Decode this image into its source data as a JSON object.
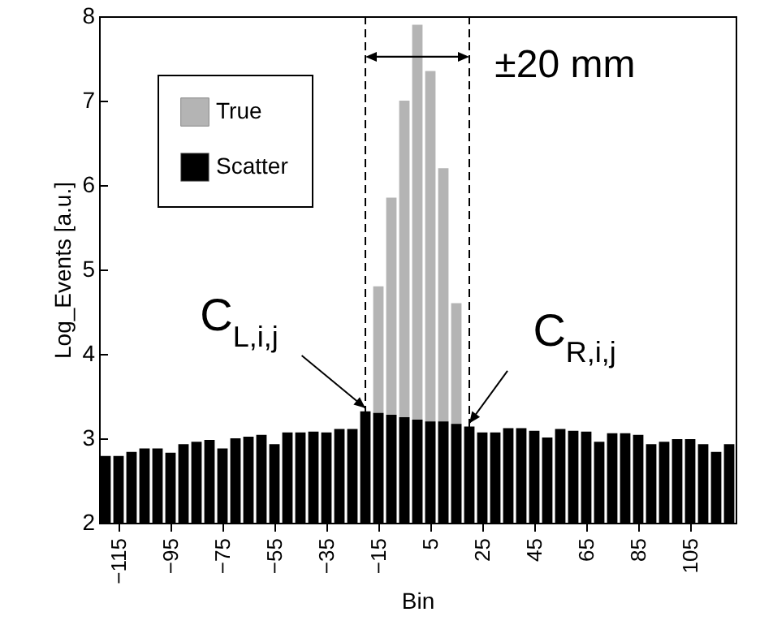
{
  "chart_data": {
    "type": "bar",
    "xlabel": "Bin",
    "ylabel": "Log_Events [a.u.]",
    "x": [
      -120,
      -115,
      -110,
      -105,
      -100,
      -95,
      -90,
      -85,
      -80,
      -75,
      -70,
      -65,
      -60,
      -55,
      -50,
      -45,
      -40,
      -35,
      -30,
      -25,
      -20,
      -15,
      -10,
      -5,
      0,
      5,
      10,
      15,
      20,
      25,
      30,
      35,
      40,
      45,
      50,
      55,
      60,
      65,
      70,
      75,
      80,
      85,
      90,
      95,
      100,
      105,
      110,
      115,
      120
    ],
    "series": [
      {
        "name": "True",
        "color": "#b4b4b4",
        "values": [
          null,
          null,
          null,
          null,
          null,
          null,
          null,
          null,
          null,
          null,
          null,
          null,
          null,
          null,
          null,
          null,
          null,
          null,
          null,
          null,
          null,
          4.8,
          5.85,
          7.0,
          7.9,
          7.35,
          6.2,
          4.6,
          null,
          null,
          null,
          null,
          null,
          null,
          null,
          null,
          null,
          null,
          null,
          null,
          null,
          null,
          null,
          null,
          null,
          null,
          null,
          null,
          null
        ]
      },
      {
        "name": "Scatter",
        "color": "#000000",
        "values": [
          2.79,
          2.79,
          2.84,
          2.88,
          2.88,
          2.83,
          2.93,
          2.96,
          2.98,
          2.88,
          3.0,
          3.02,
          3.04,
          2.93,
          3.07,
          3.07,
          3.08,
          3.07,
          3.11,
          3.11,
          3.32,
          3.3,
          3.28,
          3.25,
          3.22,
          3.2,
          3.2,
          3.17,
          3.14,
          3.07,
          3.07,
          3.12,
          3.12,
          3.09,
          3.01,
          3.11,
          3.09,
          3.08,
          2.96,
          3.06,
          3.06,
          3.04,
          2.93,
          2.96,
          2.99,
          2.99,
          2.93,
          2.84,
          2.93
        ]
      }
    ],
    "xlim": [
      -122.5,
      122.5
    ],
    "xticks": [
      -115,
      -95,
      -75,
      -55,
      -35,
      -15,
      5,
      25,
      45,
      65,
      85,
      105
    ],
    "ylim": [
      2,
      8
    ],
    "yticks": [
      2,
      3,
      4,
      5,
      6,
      7,
      8
    ],
    "ref_lines": [
      {
        "axis": "x",
        "value": -20,
        "line_style": "dashed"
      },
      {
        "axis": "x",
        "value": 20,
        "line_style": "dashed"
      }
    ],
    "annotations": [
      "±20 mm",
      {
        "text": "C$_{L,i,j}$",
        "x": -20,
        "y": 3.32
      },
      {
        "text": "C$_{R,i,j}$",
        "x": 20,
        "y": 3.14
      }
    ],
    "legend": "top left"
  }
}
